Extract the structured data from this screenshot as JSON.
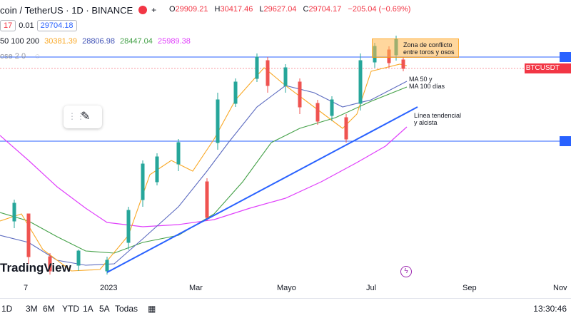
{
  "header": {
    "symbol_text": "coin / TetherUS · 1D · BINANCE",
    "ohlc": [
      {
        "k": "O",
        "v": "29909.21"
      },
      {
        "k": "H",
        "v": "30417.46"
      },
      {
        "k": "L",
        "v": "29627.04"
      },
      {
        "k": "C",
        "v": "29704.17"
      }
    ],
    "change": "−205.04 (−0.69%)"
  },
  "toolbar2": {
    "sell_price": "17",
    "spread": "0.01",
    "buy_price": "29704.18"
  },
  "ma_legend": {
    "label": "50 100 200",
    "values": [
      "30381.39",
      "28806.98",
      "28447.04",
      "25989.38"
    ],
    "colors": [
      "#f9a825",
      "#3f51b5",
      "#43a047",
      "#e040fb"
    ]
  },
  "hidden_indicator": "ose 2 0",
  "annotations": {
    "zona": "Zona de conflicto\nentre toros y osos",
    "ma": "MA 50 y\nMA 100 días",
    "linea": "Línea tendencial\ny alcista"
  },
  "price_tag": "BTCUSDT",
  "watermark": "TradingView",
  "xaxis_labels": [
    {
      "t": "7"
    },
    {
      "t": "2023"
    },
    {
      "t": "Mar"
    },
    {
      "t": "Mayo"
    },
    {
      "t": "Jul"
    },
    {
      "t": "Sep"
    },
    {
      "t": "Nov"
    }
  ],
  "timeframes": [
    "1D",
    "3M",
    "6M",
    "YTD",
    "1A",
    "5A",
    "Todas"
  ],
  "clock": "13:30:46",
  "colors": {
    "up": "#26a69a",
    "down": "#ef5350",
    "trend": "#2962ff",
    "hline": "#2962ff",
    "red": "#f23645"
  }
}
